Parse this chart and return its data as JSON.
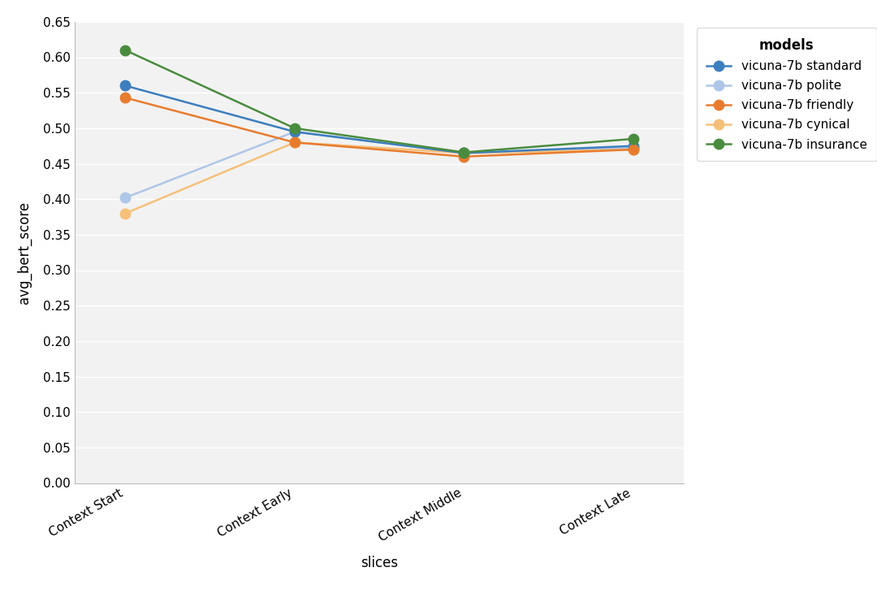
{
  "slices": [
    "Context Start",
    "Context Early",
    "Context Middle",
    "Context Late"
  ],
  "series": [
    {
      "name": "vicuna-7b standard",
      "color": "#3d7ebf",
      "values": [
        0.56,
        0.495,
        0.465,
        0.475
      ],
      "marker": "o",
      "zorder": 3
    },
    {
      "name": "vicuna-7b polite",
      "color": "#aec6e8",
      "values": [
        0.402,
        0.495,
        0.465,
        0.472
      ],
      "marker": "o",
      "zorder": 2
    },
    {
      "name": "vicuna-7b friendly",
      "color": "#e87c2e",
      "values": [
        0.543,
        0.48,
        0.46,
        0.47
      ],
      "marker": "o",
      "zorder": 3
    },
    {
      "name": "vicuna-7b cynical",
      "color": "#f5c07a",
      "values": [
        0.38,
        0.48,
        0.465,
        0.47
      ],
      "marker": "o",
      "zorder": 2
    },
    {
      "name": "vicuna-7b insurance",
      "color": "#4a8c3f",
      "values": [
        0.61,
        0.5,
        0.466,
        0.485
      ],
      "marker": "o",
      "zorder": 4
    }
  ],
  "xlabel": "slices",
  "ylabel": "avg_bert_score",
  "legend_title": "models",
  "ylim": [
    0.0,
    0.65
  ],
  "yticks": [
    0.0,
    0.05,
    0.1,
    0.15,
    0.2,
    0.25,
    0.3,
    0.35,
    0.4,
    0.45,
    0.5,
    0.55,
    0.6,
    0.65
  ],
  "background_color": "#ffffff",
  "plot_bg_color": "#f2f2f2",
  "grid_color": "#ffffff",
  "line_width": 1.8,
  "marker_size": 9
}
